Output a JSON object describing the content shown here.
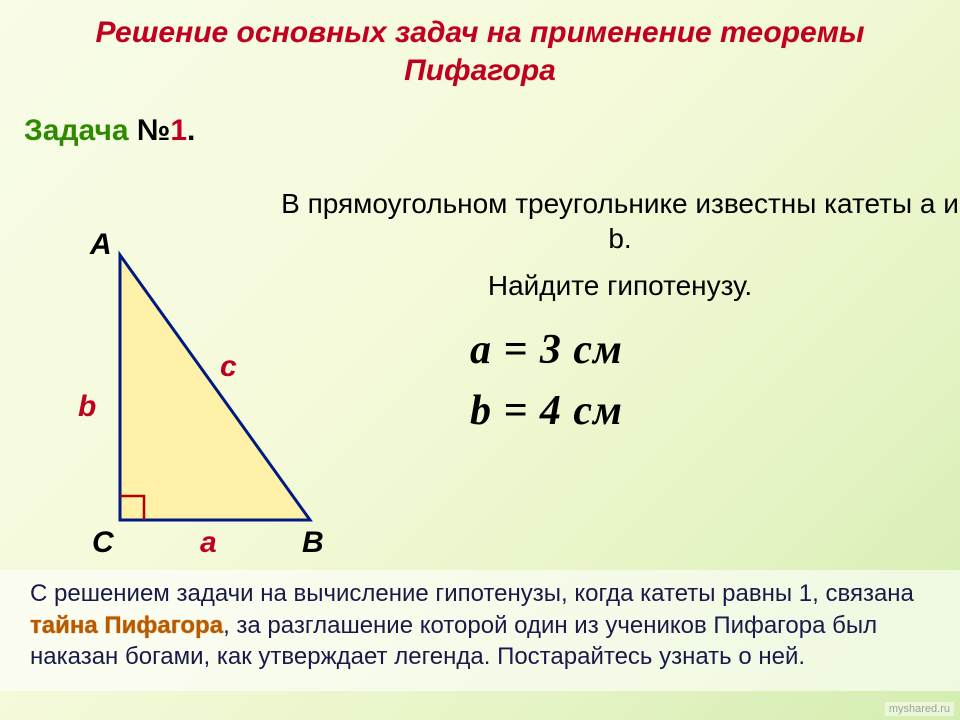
{
  "title": "Решение основных задач на применение теоремы Пифагора",
  "task": {
    "word": "Задача ",
    "num_prefix": "№",
    "num": "1",
    "suffix": "."
  },
  "problem": {
    "line1": "В прямоугольном треугольнике известны катеты a и b.",
    "line2": "Найдите гипотенузу."
  },
  "equations": {
    "eq1": "a = 3 см",
    "eq2": "b = 4 см"
  },
  "triangle": {
    "stroke_color": "#001a80",
    "fill_color": "#fff2a8",
    "stroke_width": 3,
    "right_angle_color": "#b00000",
    "points": {
      "A": [
        50,
        25
      ],
      "C": [
        50,
        290
      ],
      "B": [
        240,
        290
      ]
    },
    "vertices": {
      "A": "A",
      "B": "B",
      "C": "C"
    },
    "sides": {
      "a": "a",
      "b": "b",
      "c": "c"
    },
    "side_label_color": "#c00020"
  },
  "note": {
    "pre": "   С решением задачи на вычисление гипотенузы, когда катеты равны 1,  связана ",
    "highlight": "тайна Пифагора",
    "post": ", за разглашение которой один из учеников Пифагора был наказан богами, как утверждает легенда. Постарайтесь узнать о ней."
  },
  "watermark": "myshared.ru"
}
